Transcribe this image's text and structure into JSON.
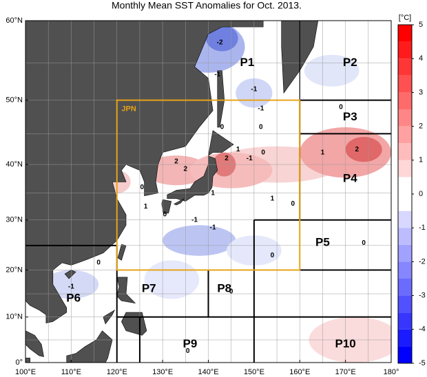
{
  "header": {
    "title": "Monthly Mean SST Anomalies for Oct. 2013."
  },
  "map": {
    "lon_range": [
      100,
      180
    ],
    "lat_range": [
      0,
      60
    ],
    "lon_ticks": [
      {
        "value": 100,
        "label": "100°E"
      },
      {
        "value": 110,
        "label": "110°E"
      },
      {
        "value": 120,
        "label": "120°E"
      },
      {
        "value": 130,
        "label": "130°E"
      },
      {
        "value": 140,
        "label": "140°E"
      },
      {
        "value": 150,
        "label": "150°E"
      },
      {
        "value": 160,
        "label": "160°E"
      },
      {
        "value": 170,
        "label": "170°E"
      },
      {
        "value": 180,
        "label": "180°"
      }
    ],
    "lat_ticks": [
      {
        "value": 0,
        "label": "0°"
      },
      {
        "value": 10,
        "label": "10°N"
      },
      {
        "value": 20,
        "label": "20°N"
      },
      {
        "value": 30,
        "label": "30°N"
      },
      {
        "value": 40,
        "label": "40°N"
      },
      {
        "value": 50,
        "label": "50°N"
      },
      {
        "value": 60,
        "label": "60°N"
      }
    ],
    "regions": [
      "P1",
      "P2",
      "P3",
      "P4",
      "P5",
      "P6",
      "P7",
      "P8",
      "P9",
      "P10"
    ],
    "area_label": "JPN",
    "contour_labels": [
      -2,
      -1,
      -1,
      0,
      -1,
      0,
      1,
      2,
      -1,
      0,
      2,
      2,
      0,
      1,
      0,
      -1,
      -1,
      1,
      1,
      0,
      1,
      2,
      0,
      0,
      -1,
      0,
      0,
      0,
      0
    ]
  },
  "colorbar": {
    "unit": "[°C]",
    "range": [
      -5,
      5
    ],
    "ticks": [
      5,
      4,
      3,
      2,
      1,
      0,
      -1,
      -2,
      -3,
      -4,
      -5
    ]
  }
}
